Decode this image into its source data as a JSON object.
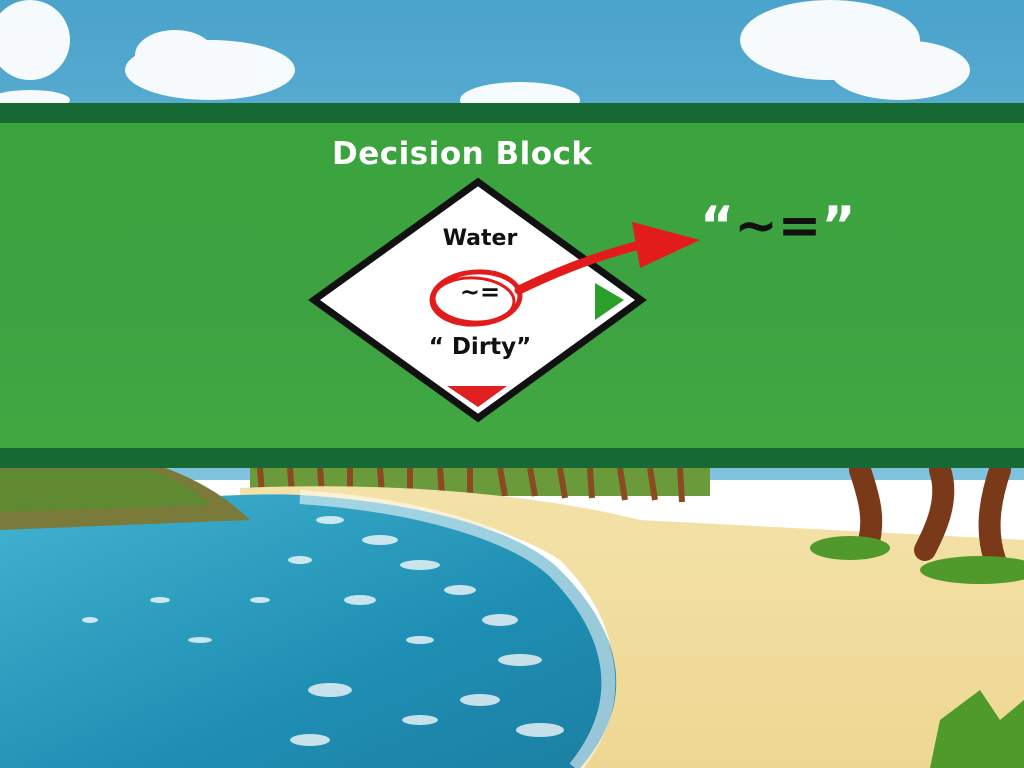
{
  "banner": {
    "title": "Decision Block"
  },
  "decision_block": {
    "top_text": "Water",
    "operator": "~=",
    "bottom_text": "“ Dirty”",
    "true_port_color": "#2aa02a",
    "false_port_color": "#e02020"
  },
  "callout": {
    "open_quote": "“",
    "operator": "~=",
    "close_quote": "”"
  },
  "annotation": {
    "color": "#e21b1b"
  },
  "colors": {
    "banner_green": "#3aa432",
    "banner_border": "#176a34",
    "sky": "#4fa7cf",
    "water": "#1f8fb4",
    "sand": "#f0dc9a"
  }
}
